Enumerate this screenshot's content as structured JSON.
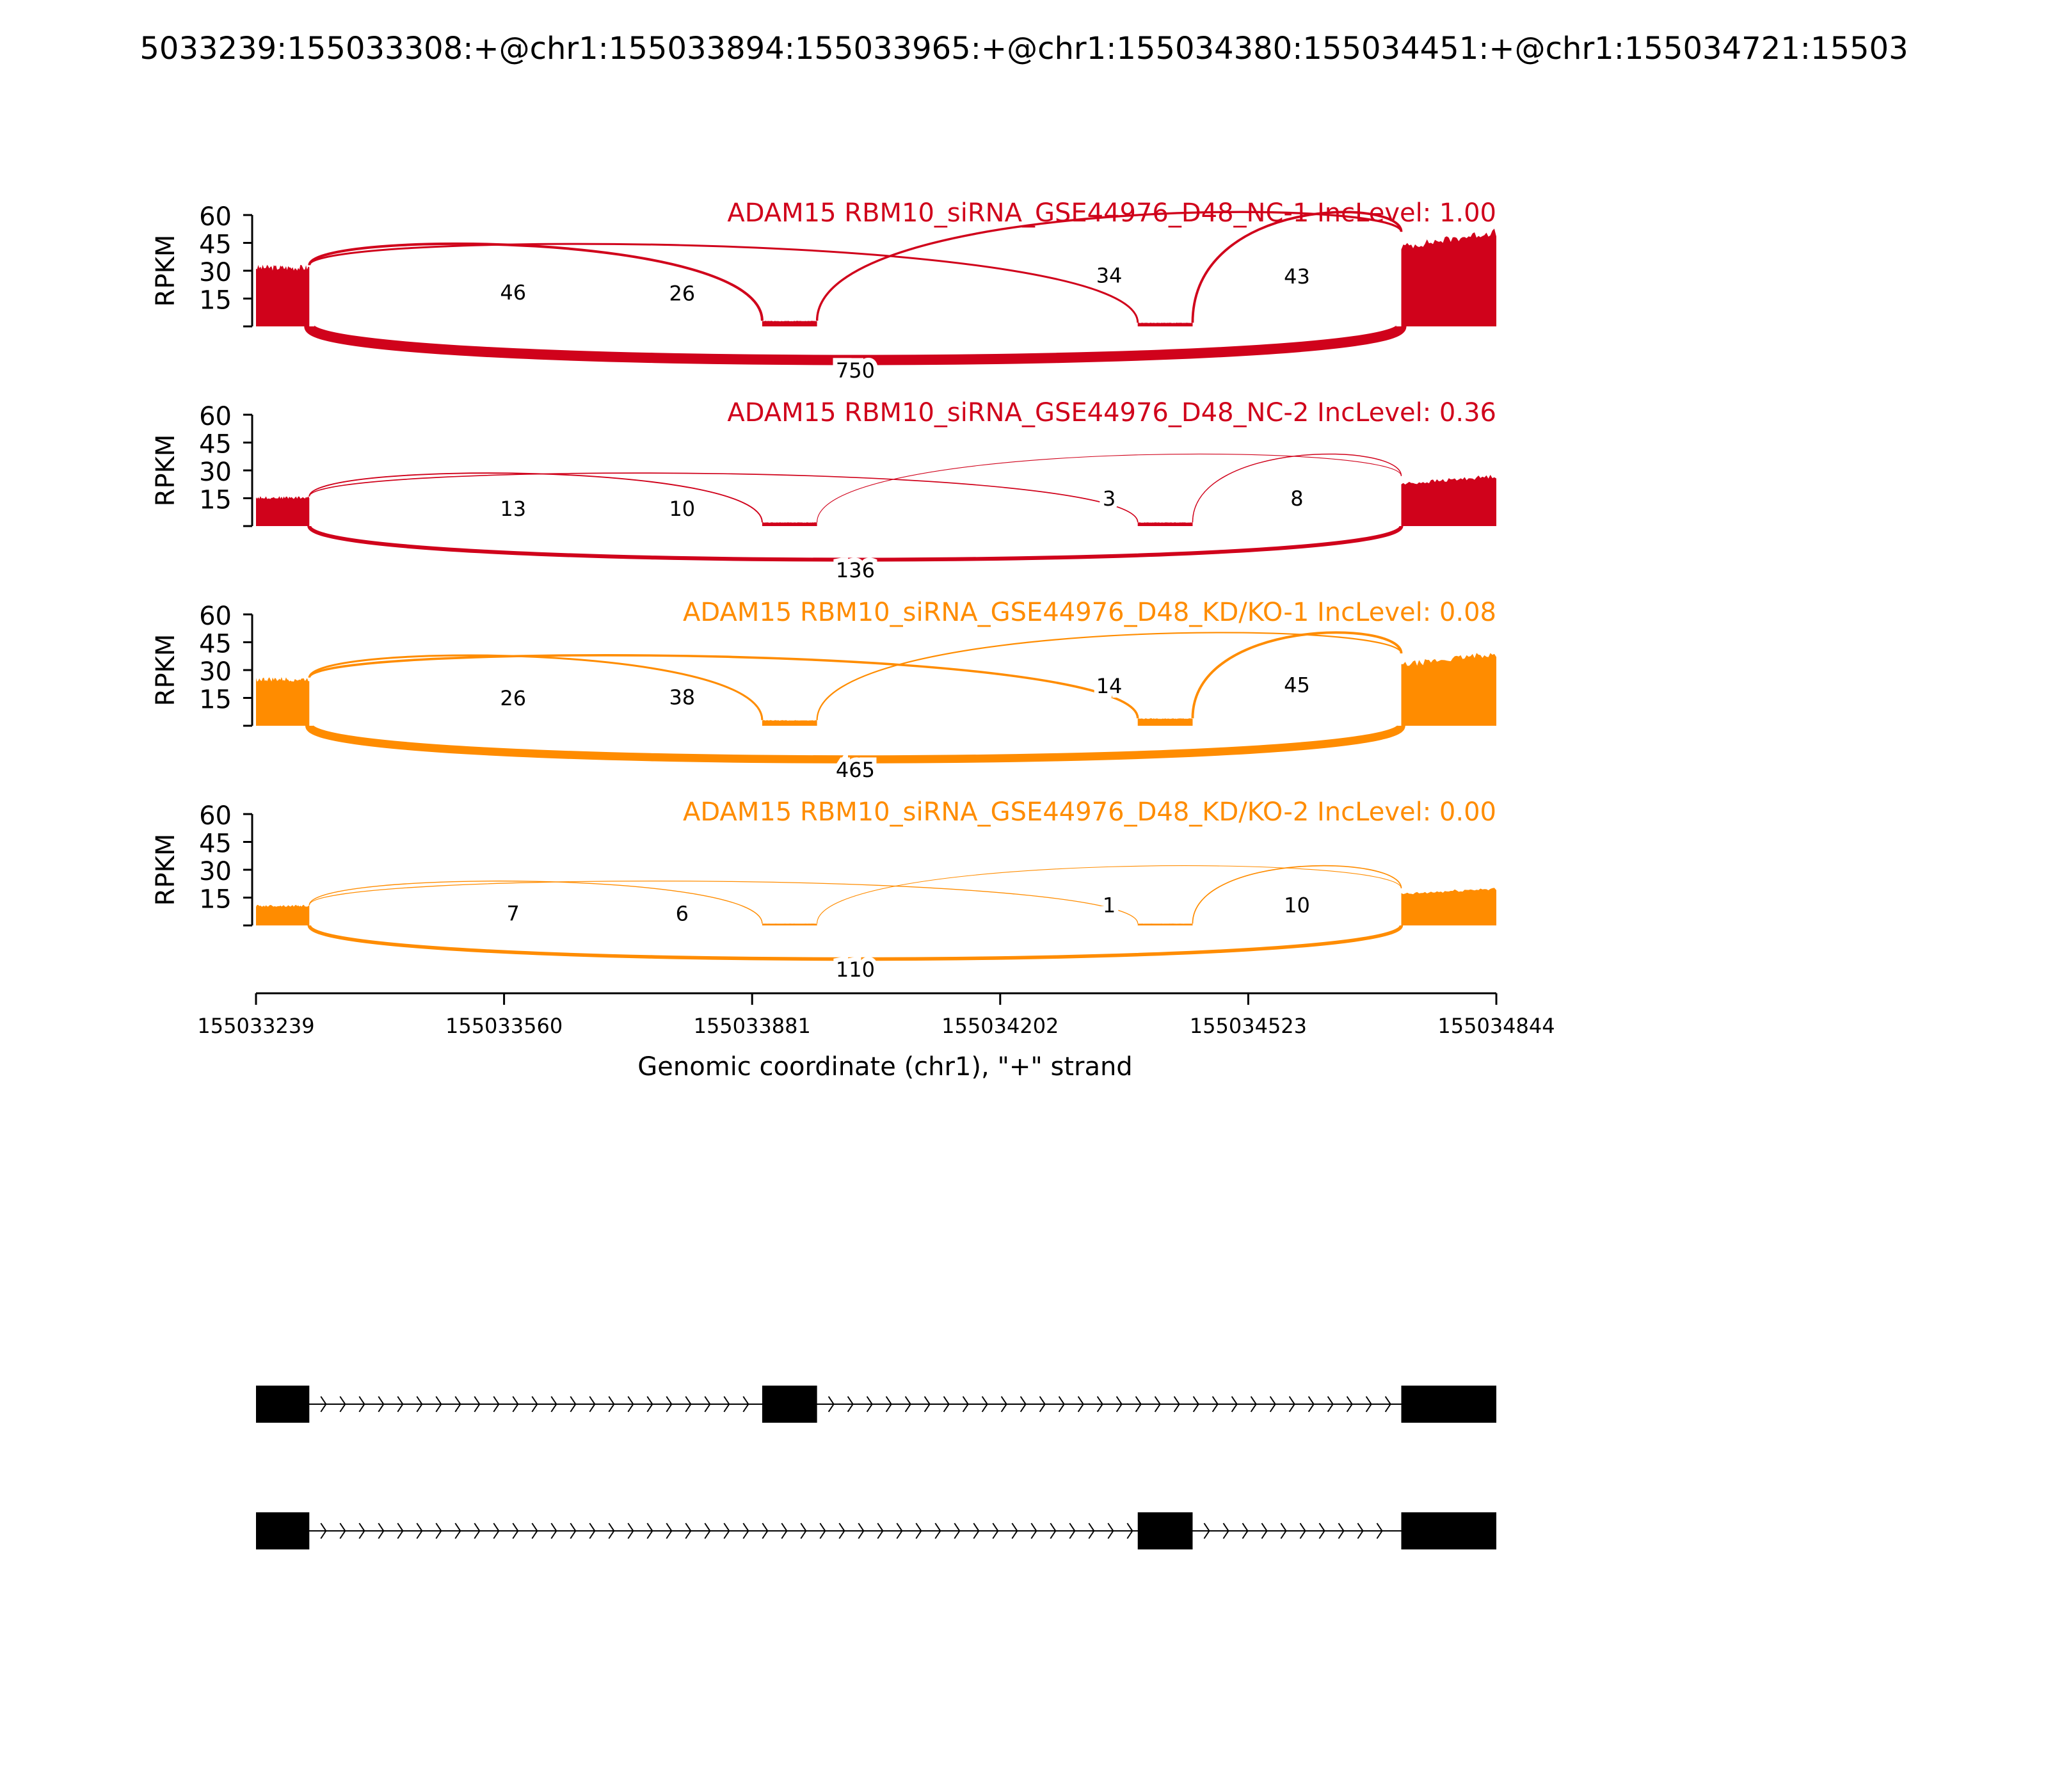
{
  "title": "5033239:155033308:+@chr1:155033894:155033965:+@chr1:155034380:155034451:+@chr1:155034721:15503",
  "colors": {
    "nc": "#d0021b",
    "kd": "#ff8c00",
    "axis": "#000000",
    "gene": "#000000"
  },
  "chart_data": {
    "type": "sashimi",
    "x_axis": {
      "label": "Genomic coordinate (chr1), \"+\" strand",
      "range": [
        155033239,
        155034844
      ],
      "ticks": [
        "155033239",
        "155033560",
        "155033881",
        "155034202",
        "155034523",
        "155034844"
      ]
    },
    "y_axis": {
      "label": "RPKM",
      "range": [
        0,
        60
      ],
      "ticks": [
        "60",
        "45",
        "30",
        "15"
      ]
    },
    "exons": [
      [
        155033239,
        155033308
      ],
      [
        155033894,
        155033965
      ],
      [
        155034380,
        155034451
      ],
      [
        155034721,
        155034844
      ]
    ],
    "tracks": [
      {
        "title": "ADAM15 RBM10_siRNA_GSE44976_D48_NC-1 IncLevel: 1.00",
        "color_key": "nc",
        "coverage": [
          33,
          3,
          2,
          51
        ],
        "junctions": [
          {
            "from": 155033308,
            "to": 155033894,
            "count": "46",
            "above": true
          },
          {
            "from": 155033308,
            "to": 155034380,
            "count": "26",
            "above": true
          },
          {
            "from": 155033965,
            "to": 155034721,
            "count": "34",
            "above": true
          },
          {
            "from": 155034451,
            "to": 155034721,
            "count": "43",
            "above": true
          },
          {
            "from": 155033308,
            "to": 155034721,
            "count": "750",
            "above": false
          }
        ]
      },
      {
        "title": "ADAM15 RBM10_siRNA_GSE44976_D48_NC-2 IncLevel: 0.36",
        "color_key": "nc",
        "coverage": [
          16,
          2,
          2,
          27
        ],
        "junctions": [
          {
            "from": 155033308,
            "to": 155033894,
            "count": "13",
            "above": true
          },
          {
            "from": 155033308,
            "to": 155034380,
            "count": "10",
            "above": true
          },
          {
            "from": 155033965,
            "to": 155034721,
            "count": "3",
            "above": true
          },
          {
            "from": 155034451,
            "to": 155034721,
            "count": "8",
            "above": true
          },
          {
            "from": 155033308,
            "to": 155034721,
            "count": "136",
            "above": false
          }
        ]
      },
      {
        "title": "ADAM15 RBM10_siRNA_GSE44976_D48_KD/KO-1 IncLevel: 0.08",
        "color_key": "kd",
        "coverage": [
          26,
          3,
          4,
          39
        ],
        "junctions": [
          {
            "from": 155033308,
            "to": 155033894,
            "count": "26",
            "above": true
          },
          {
            "from": 155033308,
            "to": 155034380,
            "count": "38",
            "above": true
          },
          {
            "from": 155033965,
            "to": 155034721,
            "count": "14",
            "above": true
          },
          {
            "from": 155034451,
            "to": 155034721,
            "count": "45",
            "above": true
          },
          {
            "from": 155033308,
            "to": 155034721,
            "count": "465",
            "above": false
          }
        ]
      },
      {
        "title": "ADAM15 RBM10_siRNA_GSE44976_D48_KD/KO-2 IncLevel: 0.00",
        "color_key": "kd",
        "coverage": [
          11,
          1,
          1,
          20
        ],
        "junctions": [
          {
            "from": 155033308,
            "to": 155033894,
            "count": "7",
            "above": true
          },
          {
            "from": 155033308,
            "to": 155034380,
            "count": "6",
            "above": true
          },
          {
            "from": 155033965,
            "to": 155034721,
            "count": "1",
            "above": true
          },
          {
            "from": 155034451,
            "to": 155034721,
            "count": "10",
            "above": true
          },
          {
            "from": 155033308,
            "to": 155034721,
            "count": "110",
            "above": false
          }
        ]
      }
    ],
    "isoforms": [
      {
        "exons": [
          [
            155033239,
            155033308
          ],
          [
            155033894,
            155033965
          ],
          [
            155034721,
            155034844
          ]
        ]
      },
      {
        "exons": [
          [
            155033239,
            155033308
          ],
          [
            155034380,
            155034451
          ],
          [
            155034721,
            155034844
          ]
        ]
      }
    ]
  }
}
